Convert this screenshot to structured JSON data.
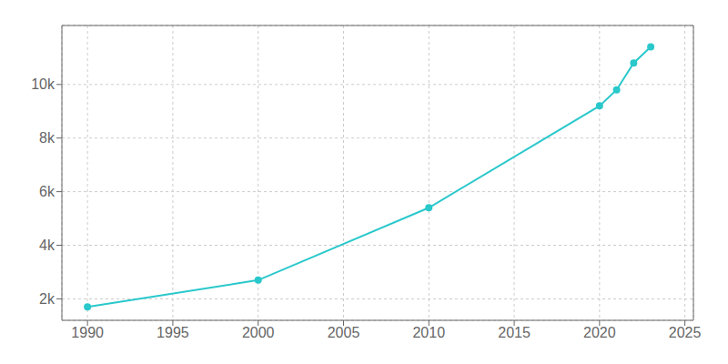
{
  "chart_data": {
    "type": "line",
    "x": [
      1990,
      2000,
      2010,
      2020,
      2021,
      2022,
      2023
    ],
    "values": [
      1700,
      2700,
      5400,
      9200,
      9800,
      10800,
      11400
    ],
    "color": "#2ac8cb",
    "xlim": [
      1988.5,
      2025.5
    ],
    "ylim": [
      1200,
      12200
    ],
    "xticks": [
      1990,
      1995,
      2000,
      2005,
      2010,
      2015,
      2020,
      2025
    ],
    "yticks": [
      {
        "value": 2000,
        "label": "2k"
      },
      {
        "value": 4000,
        "label": "4k"
      },
      {
        "value": 6000,
        "label": "6k"
      },
      {
        "value": 8000,
        "label": "8k"
      },
      {
        "value": 10000,
        "label": "10k"
      }
    ],
    "grid": true,
    "marker": "circle"
  }
}
